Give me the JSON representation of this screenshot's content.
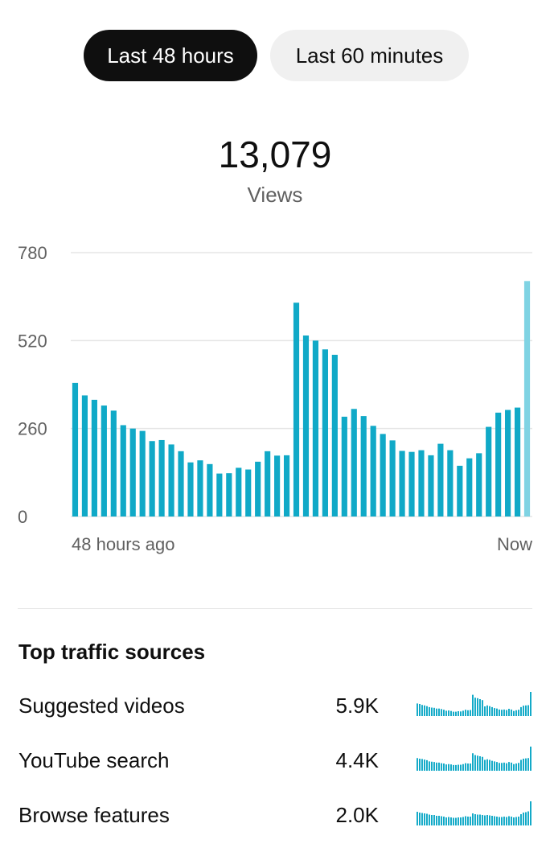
{
  "tabs": {
    "active_label": "Last 48 hours",
    "inactive_label": "Last 60 minutes"
  },
  "summary": {
    "value": "13,079",
    "label": "Views"
  },
  "chart_data": {
    "type": "bar",
    "title": "",
    "xlabel": "",
    "ylabel": "",
    "ylim": [
      0,
      780
    ],
    "yticks": [
      0,
      260,
      520,
      780
    ],
    "ytick_labels": [
      "0",
      "260",
      "520",
      "780"
    ],
    "x_start_label": "48 hours ago",
    "x_end_label": "Now",
    "grid": true,
    "values": [
      395,
      358,
      345,
      328,
      313,
      270,
      260,
      253,
      223,
      226,
      213,
      193,
      160,
      166,
      155,
      127,
      128,
      144,
      139,
      162,
      193,
      180,
      181,
      632,
      535,
      520,
      494,
      478,
      295,
      318,
      297,
      268,
      244,
      225,
      194,
      191,
      196,
      181,
      215,
      196,
      150,
      172,
      187,
      265,
      307,
      315,
      322,
      696
    ],
    "bar_color": "#10a9c7",
    "last_bar_color": "#7fd3e3",
    "gridline_color": "#e5e5e5"
  },
  "traffic_sources": {
    "title": "Top traffic sources",
    "rows": [
      {
        "name": "Suggested videos",
        "value": "5.9K",
        "spark": [
          52,
          50,
          46,
          44,
          41,
          37,
          35,
          34,
          31,
          31,
          29,
          26,
          22,
          23,
          21,
          18,
          18,
          20,
          19,
          22,
          26,
          24,
          25,
          88,
          76,
          74,
          70,
          66,
          40,
          44,
          41,
          37,
          33,
          31,
          27,
          26,
          27,
          25,
          30,
          27,
          21,
          24,
          26,
          37,
          43,
          44,
          45,
          100
        ]
      },
      {
        "name": "YouTube search",
        "value": "4.4K",
        "spark": [
          42,
          40,
          39,
          37,
          35,
          31,
          30,
          29,
          27,
          27,
          25,
          24,
          21,
          22,
          21,
          19,
          19,
          20,
          20,
          22,
          25,
          24,
          24,
          58,
          52,
          50,
          48,
          46,
          36,
          38,
          36,
          33,
          31,
          29,
          26,
          26,
          27,
          25,
          29,
          27,
          22,
          24,
          26,
          36,
          40,
          41,
          42,
          80
        ]
      },
      {
        "name": "Browse features",
        "value": "2.0K",
        "spark": [
          34,
          32,
          31,
          30,
          29,
          27,
          26,
          26,
          24,
          24,
          23,
          22,
          20,
          21,
          20,
          19,
          19,
          20,
          20,
          21,
          23,
          22,
          22,
          30,
          28,
          27,
          27,
          26,
          25,
          26,
          25,
          24,
          23,
          22,
          21,
          21,
          22,
          21,
          23,
          22,
          20,
          21,
          22,
          28,
          32,
          33,
          35,
          60
        ]
      }
    ]
  }
}
